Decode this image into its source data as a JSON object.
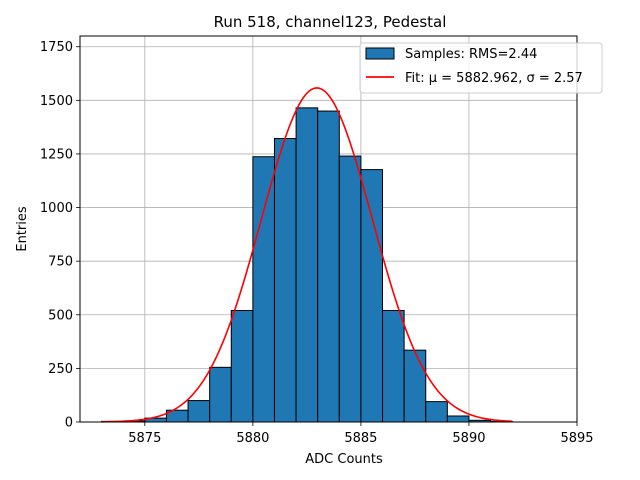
{
  "chart_data": {
    "type": "bar",
    "title": "Run 518, channel123, Pedestal",
    "xlabel": "ADC Counts",
    "ylabel": "Entries",
    "xlim": [
      5872.0,
      5895.0
    ],
    "ylim": [
      0,
      1800
    ],
    "xticks": [
      5875,
      5880,
      5885,
      5890,
      5895
    ],
    "yticks": [
      0,
      250,
      500,
      750,
      1000,
      1250,
      1500,
      1750
    ],
    "grid": true,
    "legend_position": "top-right",
    "bin_width": 1,
    "histogram": {
      "name": "Samples: RMS=2.44",
      "color": "#1f77b4",
      "edgecolor": "#000000",
      "bins": [
        {
          "left": 5873,
          "count": 3
        },
        {
          "left": 5874,
          "count": 5
        },
        {
          "left": 5875,
          "count": 18
        },
        {
          "left": 5876,
          "count": 55
        },
        {
          "left": 5877,
          "count": 100
        },
        {
          "left": 5878,
          "count": 255
        },
        {
          "left": 5879,
          "count": 520
        },
        {
          "left": 5880,
          "count": 1237
        },
        {
          "left": 5881,
          "count": 1322
        },
        {
          "left": 5882,
          "count": 1465
        },
        {
          "left": 5883,
          "count": 1450
        },
        {
          "left": 5884,
          "count": 1240
        },
        {
          "left": 5885,
          "count": 1177
        },
        {
          "left": 5886,
          "count": 520
        },
        {
          "left": 5887,
          "count": 335
        },
        {
          "left": 5888,
          "count": 95
        },
        {
          "left": 5889,
          "count": 28
        },
        {
          "left": 5890,
          "count": 8
        },
        {
          "left": 5891,
          "count": 3
        }
      ]
    },
    "fit": {
      "name": "Fit: μ = 5882.962, σ = 2.57",
      "color": "#ff0000",
      "mu": 5882.962,
      "sigma": 2.57,
      "amplitude": 1558,
      "x_range": [
        5873,
        5892
      ]
    }
  }
}
